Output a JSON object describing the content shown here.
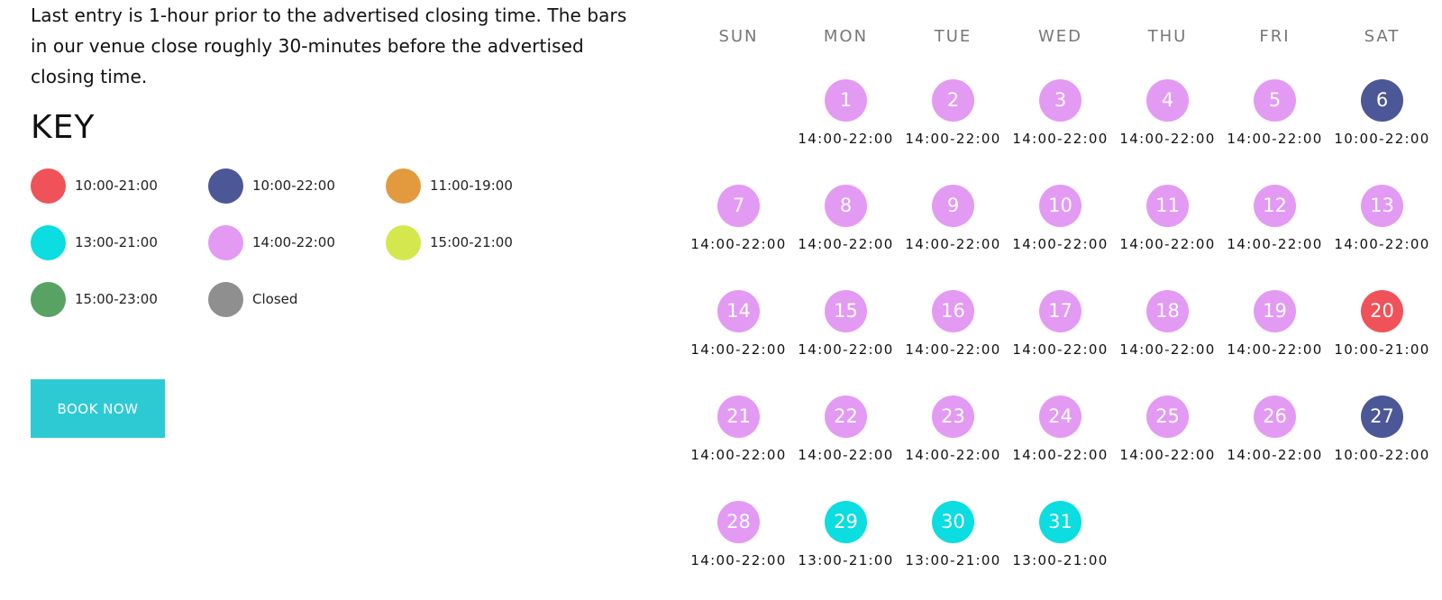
{
  "intro_text": "Last entry is 1-hour prior to the advertised closing time. The bars in our venue close roughly 30-minutes before the advertised closing time.",
  "key": {
    "title": "KEY",
    "items": [
      {
        "label": "10:00-21:00",
        "color": "#f05259"
      },
      {
        "label": "10:00-22:00",
        "color": "#4b5796"
      },
      {
        "label": "11:00-19:00",
        "color": "#e39a3e"
      },
      {
        "label": "13:00-21:00",
        "color": "#0bdde0"
      },
      {
        "label": "14:00-22:00",
        "color": "#e39af3"
      },
      {
        "label": "15:00-21:00",
        "color": "#d4e74c"
      },
      {
        "label": "15:00-23:00",
        "color": "#58a263"
      },
      {
        "label": "Closed",
        "color": "#8f8f8f"
      }
    ]
  },
  "book_button": {
    "label": "BOOK NOW"
  },
  "calendar": {
    "weekdays": [
      "SUN",
      "MON",
      "TUE",
      "WED",
      "THU",
      "FRI",
      "SAT"
    ],
    "first_weekday_index": 1,
    "days": [
      {
        "day": "1",
        "hours": "14:00-22:00",
        "color": "#e39af3"
      },
      {
        "day": "2",
        "hours": "14:00-22:00",
        "color": "#e39af3"
      },
      {
        "day": "3",
        "hours": "14:00-22:00",
        "color": "#e39af3"
      },
      {
        "day": "4",
        "hours": "14:00-22:00",
        "color": "#e39af3"
      },
      {
        "day": "5",
        "hours": "14:00-22:00",
        "color": "#e39af3"
      },
      {
        "day": "6",
        "hours": "10:00-22:00",
        "color": "#4b5796"
      },
      {
        "day": "7",
        "hours": "14:00-22:00",
        "color": "#e39af3"
      },
      {
        "day": "8",
        "hours": "14:00-22:00",
        "color": "#e39af3"
      },
      {
        "day": "9",
        "hours": "14:00-22:00",
        "color": "#e39af3"
      },
      {
        "day": "10",
        "hours": "14:00-22:00",
        "color": "#e39af3"
      },
      {
        "day": "11",
        "hours": "14:00-22:00",
        "color": "#e39af3"
      },
      {
        "day": "12",
        "hours": "14:00-22:00",
        "color": "#e39af3"
      },
      {
        "day": "13",
        "hours": "14:00-22:00",
        "color": "#e39af3"
      },
      {
        "day": "14",
        "hours": "14:00-22:00",
        "color": "#e39af3"
      },
      {
        "day": "15",
        "hours": "14:00-22:00",
        "color": "#e39af3"
      },
      {
        "day": "16",
        "hours": "14:00-22:00",
        "color": "#e39af3"
      },
      {
        "day": "17",
        "hours": "14:00-22:00",
        "color": "#e39af3"
      },
      {
        "day": "18",
        "hours": "14:00-22:00",
        "color": "#e39af3"
      },
      {
        "day": "19",
        "hours": "14:00-22:00",
        "color": "#e39af3"
      },
      {
        "day": "20",
        "hours": "10:00-21:00",
        "color": "#f05259"
      },
      {
        "day": "21",
        "hours": "14:00-22:00",
        "color": "#e39af3"
      },
      {
        "day": "22",
        "hours": "14:00-22:00",
        "color": "#e39af3"
      },
      {
        "day": "23",
        "hours": "14:00-22:00",
        "color": "#e39af3"
      },
      {
        "day": "24",
        "hours": "14:00-22:00",
        "color": "#e39af3"
      },
      {
        "day": "25",
        "hours": "14:00-22:00",
        "color": "#e39af3"
      },
      {
        "day": "26",
        "hours": "14:00-22:00",
        "color": "#e39af3"
      },
      {
        "day": "27",
        "hours": "10:00-22:00",
        "color": "#4b5796"
      },
      {
        "day": "28",
        "hours": "14:00-22:00",
        "color": "#e39af3"
      },
      {
        "day": "29",
        "hours": "13:00-21:00",
        "color": "#0bdde0"
      },
      {
        "day": "30",
        "hours": "13:00-21:00",
        "color": "#0bdde0"
      },
      {
        "day": "31",
        "hours": "13:00-21:00",
        "color": "#0bdde0"
      }
    ]
  }
}
